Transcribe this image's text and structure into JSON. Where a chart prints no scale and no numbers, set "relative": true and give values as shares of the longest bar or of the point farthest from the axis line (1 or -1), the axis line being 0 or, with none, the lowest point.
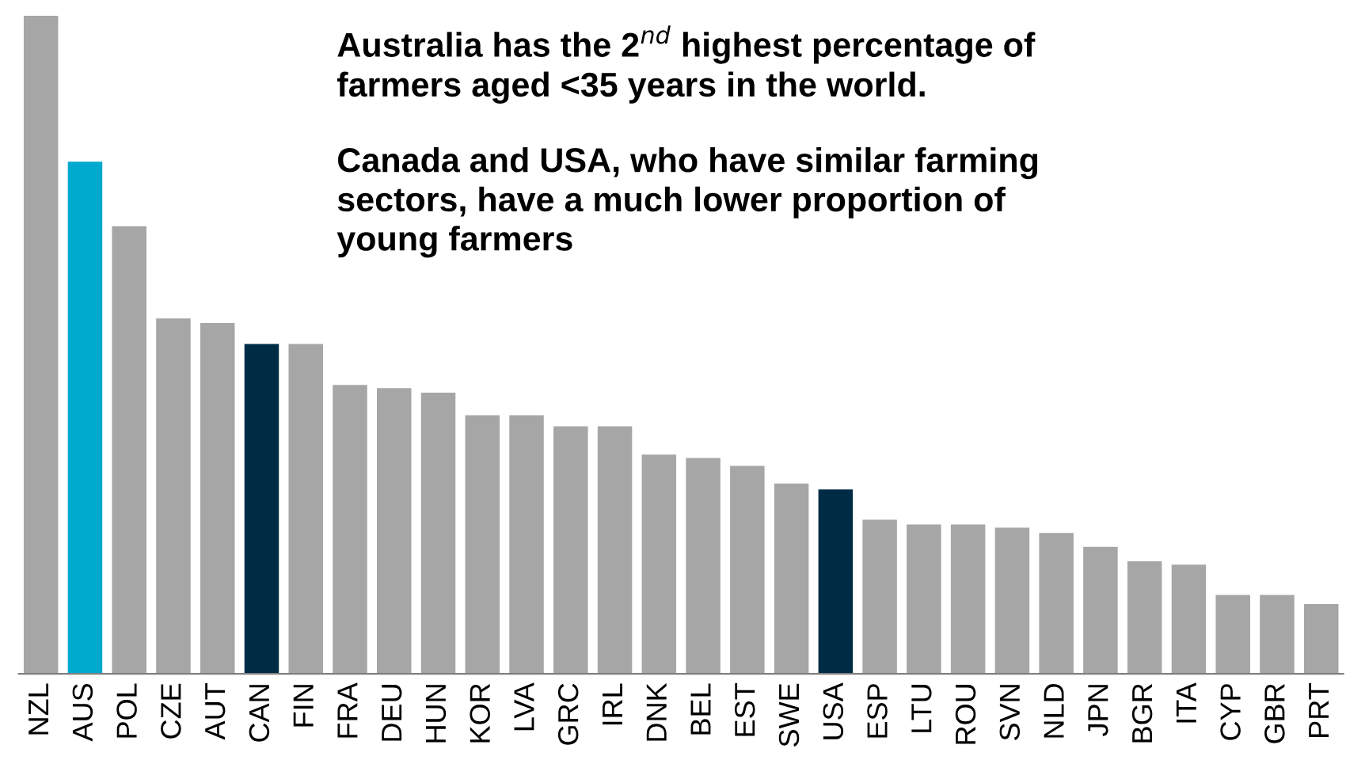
{
  "chart_data": {
    "type": "bar",
    "relative": true,
    "categories": [
      "NZL",
      "AUS",
      "POL",
      "CZE",
      "AUT",
      "CAN",
      "FIN",
      "FRA",
      "DEU",
      "HUN",
      "KOR",
      "LVA",
      "GRC",
      "IRL",
      "DNK",
      "BEL",
      "EST",
      "SWE",
      "USA",
      "ESP",
      "LTU",
      "ROU",
      "SVN",
      "NLD",
      "JPN",
      "BGR",
      "ITA",
      "CYP",
      "GBR",
      "PRT"
    ],
    "values": [
      1,
      0.778,
      0.68,
      0.54,
      0.533,
      0.501,
      0.501,
      0.439,
      0.434,
      0.427,
      0.393,
      0.393,
      0.376,
      0.376,
      0.333,
      0.328,
      0.316,
      0.289,
      0.28,
      0.234,
      0.227,
      0.227,
      0.222,
      0.214,
      0.193,
      0.171,
      0.166,
      0.12,
      0.12,
      0.106
    ],
    "colors": [
      "#a6a6a6",
      "#00a9ce",
      "#a6a6a6",
      "#a6a6a6",
      "#a6a6a6",
      "#002b45",
      "#a6a6a6",
      "#a6a6a6",
      "#a6a6a6",
      "#a6a6a6",
      "#a6a6a6",
      "#a6a6a6",
      "#a6a6a6",
      "#a6a6a6",
      "#a6a6a6",
      "#a6a6a6",
      "#a6a6a6",
      "#a6a6a6",
      "#002b45",
      "#a6a6a6",
      "#a6a6a6",
      "#a6a6a6",
      "#a6a6a6",
      "#a6a6a6",
      "#a6a6a6",
      "#a6a6a6",
      "#a6a6a6",
      "#a6a6a6",
      "#a6a6a6",
      "#a6a6a6"
    ],
    "annotations": [
      "Australia has the 2$^{nd}$ highest percentage of\nfarmers aged <35 years in the world.",
      "Canada and USA, who have similar farming\nsectors, have a much lower proportion of\nyoung farmers"
    ],
    "grid": false,
    "legend": false
  }
}
